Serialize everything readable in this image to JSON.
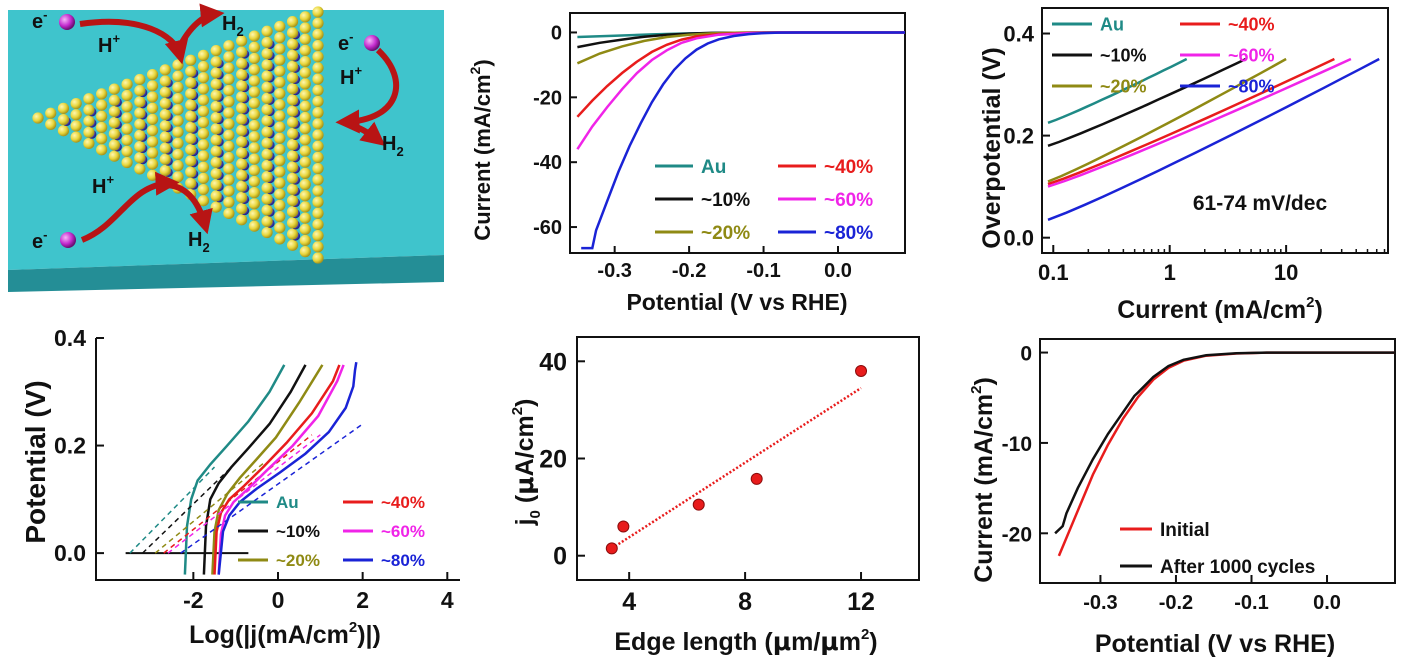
{
  "colors": {
    "teal": "#1f8a86",
    "black": "#111111",
    "olive": "#8f8a14",
    "red": "#e81c1c",
    "magenta": "#f024e8",
    "blue": "#1a23d6",
    "substrate": "#3fc4cc",
    "sulfur": "#e8d63c",
    "molybdenum": "#4b48c8",
    "electron": "#c42ccf",
    "arrow": "#b81414"
  },
  "schematic": {
    "labels": [
      {
        "id": "e1",
        "text": "e"
      },
      {
        "id": "hp1",
        "text": "H"
      },
      {
        "id": "h2a",
        "text": "H"
      },
      {
        "id": "e2",
        "text": "e"
      },
      {
        "id": "hp2",
        "text": "H"
      },
      {
        "id": "h2b",
        "text": "H"
      },
      {
        "id": "hp3",
        "text": "H"
      },
      {
        "id": "e3",
        "text": "e"
      },
      {
        "id": "h2c",
        "text": "H"
      }
    ],
    "superscripts": {
      "minus": "-",
      "plus": "+"
    },
    "subscript": "2"
  },
  "chart_data": [
    {
      "id": "lsv",
      "type": "line",
      "xlabel": "Potential (V vs RHE)",
      "ylabel": "Current (mA/cm",
      "ylabel_sup": "2",
      "ylabel_end": ")",
      "xlim": [
        -0.36,
        0.09
      ],
      "ylim": [
        -68,
        6
      ],
      "xticks": [
        -0.3,
        -0.2,
        -0.1,
        0.0
      ],
      "xtick_labels": [
        "-0.3",
        "-0.2",
        "-0.1",
        "0.0"
      ],
      "yticks": [
        0,
        -20,
        -40,
        -60
      ],
      "ytick_labels": [
        "0",
        "-20",
        "-40",
        "-60"
      ],
      "legend": {
        "placement": "bottom-right",
        "columns": 2
      },
      "series": [
        {
          "name": "Au",
          "color": "#1f8a86",
          "x": [
            -0.35,
            -0.3,
            -0.25,
            -0.2,
            -0.15,
            -0.1,
            -0.05,
            0.0,
            0.09
          ],
          "y": [
            -1.4,
            -1.0,
            -0.6,
            -0.3,
            -0.15,
            -0.05,
            0,
            0,
            0
          ]
        },
        {
          "name": "~10%",
          "color": "#111111",
          "x": [
            -0.35,
            -0.32,
            -0.29,
            -0.26,
            -0.23,
            -0.2,
            -0.17,
            -0.14,
            -0.1,
            -0.05,
            0.0,
            0.09
          ],
          "y": [
            -4.5,
            -3.2,
            -2.2,
            -1.3,
            -0.7,
            -0.35,
            -0.15,
            -0.06,
            0,
            0,
            0,
            0
          ]
        },
        {
          "name": "~20%",
          "color": "#8f8a14",
          "x": [
            -0.35,
            -0.32,
            -0.29,
            -0.26,
            -0.23,
            -0.2,
            -0.17,
            -0.14,
            -0.1,
            -0.05,
            0.0,
            0.09
          ],
          "y": [
            -9.5,
            -6.5,
            -4.3,
            -2.6,
            -1.4,
            -0.7,
            -0.3,
            -0.1,
            0,
            0,
            0,
            0
          ]
        },
        {
          "name": "~40%",
          "color": "#e81c1c",
          "x": [
            -0.35,
            -0.33,
            -0.31,
            -0.29,
            -0.27,
            -0.25,
            -0.23,
            -0.21,
            -0.19,
            -0.16,
            -0.12,
            -0.08,
            0.0,
            0.09
          ],
          "y": [
            -26,
            -21,
            -16.5,
            -12.5,
            -9,
            -6,
            -3.8,
            -2.2,
            -1.2,
            -0.5,
            -0.15,
            0,
            0,
            0
          ]
        },
        {
          "name": "~60%",
          "color": "#f024e8",
          "x": [
            -0.35,
            -0.33,
            -0.31,
            -0.29,
            -0.27,
            -0.25,
            -0.23,
            -0.21,
            -0.19,
            -0.16,
            -0.12,
            -0.08,
            0.0,
            0.09
          ],
          "y": [
            -36,
            -29,
            -23,
            -17.5,
            -12.5,
            -8.5,
            -5.5,
            -3.2,
            -1.8,
            -0.7,
            -0.2,
            0,
            0,
            0
          ]
        },
        {
          "name": "~80%",
          "color": "#1a23d6",
          "x": [
            -0.345,
            -0.33,
            -0.325,
            -0.31,
            -0.295,
            -0.28,
            -0.265,
            -0.25,
            -0.235,
            -0.22,
            -0.205,
            -0.19,
            -0.175,
            -0.16,
            -0.14,
            -0.12,
            -0.1,
            -0.08,
            -0.05,
            0.0,
            0.09
          ],
          "y": [
            -66.5,
            -66.5,
            -61,
            -52,
            -43,
            -35,
            -28,
            -21.5,
            -16,
            -11.5,
            -8,
            -5.3,
            -3.4,
            -2.1,
            -1.1,
            -0.5,
            -0.2,
            -0.05,
            0,
            0,
            0
          ]
        }
      ]
    },
    {
      "id": "tafel",
      "type": "line",
      "xscale": "log",
      "xlabel": "Current (mA/cm",
      "xlabel_sup": "2",
      "xlabel_end": ")",
      "ylabel": "Overpotential (V)",
      "xlim": [
        0.08,
        75
      ],
      "ylim": [
        -0.03,
        0.45
      ],
      "xticks": [
        0.1,
        1,
        10
      ],
      "xtick_labels": [
        "0.1",
        "1",
        "10"
      ],
      "yticks": [
        0.0,
        0.2,
        0.4
      ],
      "ytick_labels": [
        "0.0",
        "0.2",
        "0.4"
      ],
      "annotation": "61-74 mV/dec",
      "legend": {
        "placement": "top-left",
        "columns": 2
      },
      "series": [
        {
          "name": "Au",
          "color": "#1f8a86",
          "x": [
            0.09,
            1.4
          ],
          "y": [
            0.225,
            0.35
          ]
        },
        {
          "name": "~10%",
          "color": "#111111",
          "x": [
            0.09,
            4.5
          ],
          "y": [
            0.18,
            0.35
          ]
        },
        {
          "name": "~20%",
          "color": "#8f8a14",
          "x": [
            0.09,
            10
          ],
          "y": [
            0.11,
            0.35
          ]
        },
        {
          "name": "~40%",
          "color": "#e81c1c",
          "x": [
            0.09,
            26
          ],
          "y": [
            0.105,
            0.35
          ]
        },
        {
          "name": "~60%",
          "color": "#f024e8",
          "x": [
            0.09,
            36
          ],
          "y": [
            0.1,
            0.35
          ]
        },
        {
          "name": "~80%",
          "color": "#1a23d6",
          "x": [
            0.09,
            63
          ],
          "y": [
            0.035,
            0.35
          ]
        }
      ]
    },
    {
      "id": "exchange",
      "type": "line",
      "xlabel": "Log(|j(mA/cm",
      "xlabel_sup": "2",
      "xlabel_end": ")|)",
      "ylabel": "Potential (V)",
      "xlim": [
        -4.3,
        4.3
      ],
      "ylim": [
        -0.05,
        0.4
      ],
      "xticks": [
        -2,
        0,
        2,
        4
      ],
      "xtick_labels": [
        "-2",
        "0",
        "2",
        "4"
      ],
      "yticks": [
        0.0,
        0.2,
        0.4
      ],
      "ytick_labels": [
        "0.0",
        "0.2",
        "0.4"
      ],
      "legend": {
        "placement": "bottom-right",
        "columns": 2
      },
      "series": [
        {
          "name": "Au",
          "color": "#1f8a86",
          "x": [
            -2.2,
            -2.15,
            -2.05,
            -1.9,
            -1.6,
            -1.2,
            -0.7,
            -0.2,
            0.15
          ],
          "y": [
            -0.04,
            0.05,
            0.1,
            0.135,
            0.165,
            0.2,
            0.245,
            0.3,
            0.35
          ],
          "tx": [
            -3.5,
            -1.5
          ],
          "ty": [
            0.0,
            0.16
          ]
        },
        {
          "name": "~10%",
          "color": "#111111",
          "x": [
            -1.75,
            -1.7,
            -1.6,
            -1.4,
            -1.1,
            -0.7,
            -0.2,
            0.3,
            0.65
          ],
          "y": [
            -0.04,
            0.05,
            0.1,
            0.13,
            0.16,
            0.195,
            0.24,
            0.3,
            0.35
          ],
          "tx": [
            -3.2,
            -1.1
          ],
          "ty": [
            0.0,
            0.16
          ]
        },
        {
          "name": "~20%",
          "color": "#8f8a14",
          "x": [
            -1.55,
            -1.5,
            -1.4,
            -1.2,
            -0.9,
            -0.5,
            -0.05,
            0.5,
            1.05
          ],
          "y": [
            -0.04,
            0.04,
            0.08,
            0.11,
            0.14,
            0.175,
            0.215,
            0.28,
            0.35
          ],
          "tx": [
            -2.9,
            -0.3
          ],
          "ty": [
            0.0,
            0.17
          ]
        },
        {
          "name": "~40%",
          "color": "#e81c1c",
          "x": [
            -1.5,
            -1.45,
            -1.35,
            -1.15,
            -0.8,
            -0.35,
            0.2,
            0.8,
            1.3,
            1.45
          ],
          "y": [
            -0.04,
            0.04,
            0.075,
            0.1,
            0.125,
            0.16,
            0.205,
            0.26,
            0.32,
            0.35
          ],
          "tx": [
            -2.7,
            0.8
          ],
          "ty": [
            0.0,
            0.22
          ]
        },
        {
          "name": "~60%",
          "color": "#f024e8",
          "x": [
            -1.4,
            -1.35,
            -1.25,
            -1.05,
            -0.7,
            -0.25,
            0.35,
            0.95,
            1.4,
            1.55
          ],
          "y": [
            -0.04,
            0.035,
            0.07,
            0.095,
            0.12,
            0.155,
            0.2,
            0.255,
            0.32,
            0.35
          ],
          "tx": [
            -2.6,
            1.0
          ],
          "ty": [
            0.0,
            0.22
          ]
        },
        {
          "name": "~80%",
          "color": "#1a23d6",
          "x": [
            -1.4,
            -1.3,
            -1.15,
            -0.9,
            -0.5,
            0.05,
            0.65,
            1.2,
            1.6,
            1.78,
            1.82,
            1.85
          ],
          "y": [
            -0.04,
            0.04,
            0.07,
            0.095,
            0.12,
            0.15,
            0.185,
            0.225,
            0.27,
            0.31,
            0.34,
            0.355
          ],
          "tx": [
            -2.3,
            2.0
          ],
          "ty": [
            0.0,
            0.24
          ]
        }
      ],
      "baseline": {
        "x": [
          -3.6,
          -0.7
        ],
        "y": [
          0.0,
          0.0
        ]
      }
    },
    {
      "id": "j0",
      "type": "scatter",
      "xlabel": "Edge length (",
      "xlabel_mu": "μ",
      "xlabel_mid": "m/",
      "xlabel_mu2": "μ",
      "xlabel_mid2": "m",
      "xlabel_sup": "2",
      "xlabel_end": ")",
      "ylabel_j": "j",
      "ylabel_sub": "0",
      "ylabel_open": " (",
      "ylabel_mu": "μ",
      "ylabel": "A/cm",
      "ylabel_sup": "2",
      "ylabel_end": ")",
      "xlim": [
        2.2,
        14
      ],
      "ylim": [
        -5,
        45
      ],
      "xticks": [
        4,
        8,
        12
      ],
      "xtick_labels": [
        "4",
        "8",
        "12"
      ],
      "yticks": [
        0,
        20,
        40
      ],
      "ytick_labels": [
        "0",
        "20",
        "40"
      ],
      "points": {
        "x": [
          3.4,
          3.8,
          6.4,
          8.4,
          12.0
        ],
        "y": [
          1.5,
          6.0,
          10.5,
          15.8,
          38.0
        ]
      },
      "fit": {
        "x": [
          3.4,
          12.0
        ],
        "y": [
          1.5,
          34.5
        ]
      },
      "color": "#e81c1c"
    },
    {
      "id": "stability",
      "type": "line",
      "xlabel": "Potential (V vs RHE)",
      "ylabel": "Current (mA/cm",
      "ylabel_sup": "2",
      "ylabel_end": ")",
      "xlim": [
        -0.38,
        0.09
      ],
      "ylim": [
        -25.5,
        1.5
      ],
      "xticks": [
        -0.3,
        -0.2,
        -0.1,
        0.0
      ],
      "xtick_labels": [
        "-0.3",
        "-0.2",
        "-0.1",
        "0.0"
      ],
      "yticks": [
        0,
        -10,
        -20
      ],
      "ytick_labels": [
        "0",
        "-10",
        "-20"
      ],
      "legend": {
        "placement": "bottom-right",
        "columns": 1
      },
      "series": [
        {
          "name": "Initial",
          "color": "#e81c1c",
          "x": [
            -0.355,
            -0.33,
            -0.31,
            -0.29,
            -0.27,
            -0.25,
            -0.23,
            -0.21,
            -0.19,
            -0.16,
            -0.12,
            -0.08,
            0.0,
            0.09
          ],
          "y": [
            -22.5,
            -17.5,
            -13.5,
            -10.2,
            -7.3,
            -4.9,
            -3.0,
            -1.7,
            -0.9,
            -0.35,
            -0.1,
            0,
            0,
            0
          ]
        },
        {
          "name": "After 1000 cycles",
          "color": "#111111",
          "x": [
            -0.36,
            -0.35,
            -0.345,
            -0.33,
            -0.31,
            -0.29,
            -0.27,
            -0.255,
            -0.25,
            -0.23,
            -0.21,
            -0.19,
            -0.16,
            -0.12,
            -0.08,
            0.0,
            0.09
          ],
          "y": [
            -20.0,
            -19.2,
            -17.8,
            -15.0,
            -11.8,
            -9.0,
            -6.6,
            -4.8,
            -4.4,
            -2.7,
            -1.5,
            -0.8,
            -0.3,
            -0.08,
            0,
            0,
            0
          ]
        }
      ]
    }
  ]
}
